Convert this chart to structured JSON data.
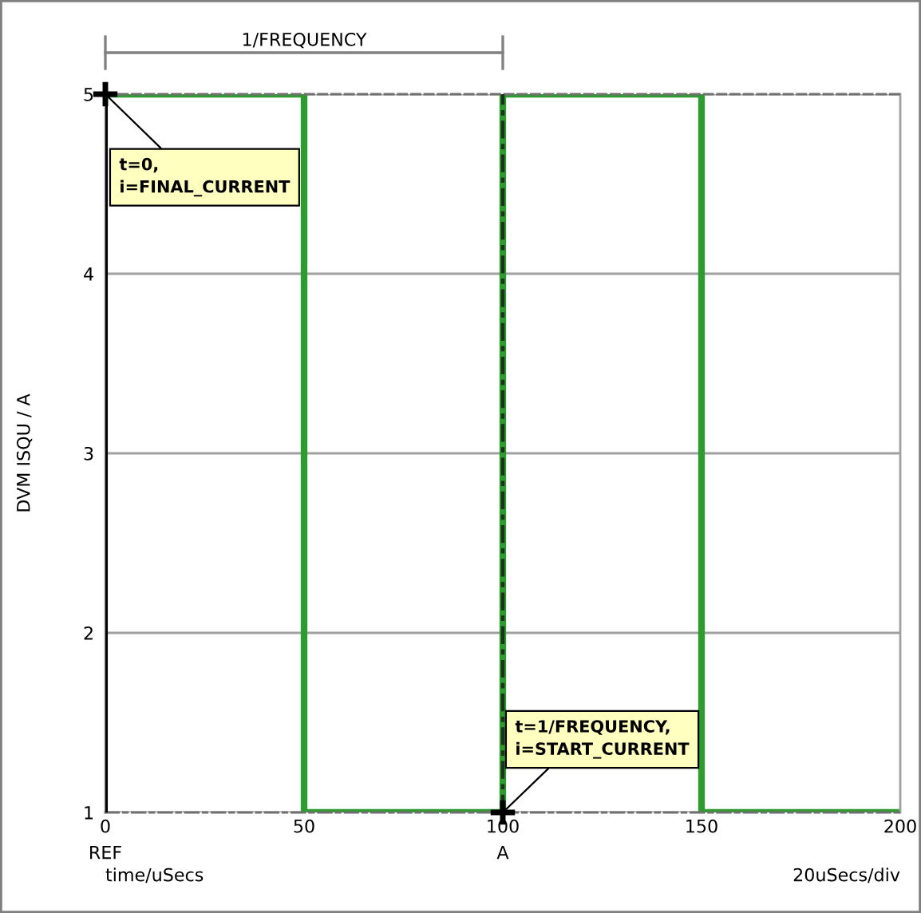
{
  "chart_data": {
    "type": "step",
    "xlabel": "time/uSecs",
    "ylabel": "DVM ISQU / A",
    "series": [
      {
        "color": "#2e9b2e",
        "x": [
          0,
          50,
          100,
          150,
          200
        ],
        "values": [
          5,
          1,
          5,
          1,
          1
        ]
      },
      {
        "type": "scatter",
        "color": "#000000",
        "marker": "cross",
        "x": [
          0,
          100
        ],
        "values": [
          5,
          1
        ]
      }
    ],
    "xlim": [
      0,
      200
    ],
    "ylim": [
      1,
      5
    ],
    "xticks": [
      0,
      50,
      100,
      150,
      200
    ],
    "yticks": [
      1,
      2,
      3,
      4,
      5
    ],
    "grid": "y",
    "ref_lines": [
      {
        "axis": "x",
        "value": 0,
        "label": "REF",
        "color": "#000000",
        "line_style": "solid"
      },
      {
        "axis": "x",
        "value": 100,
        "label": "A",
        "color": "#1a331a",
        "line_style": "dashed"
      }
    ],
    "annotations": [
      "1/FREQUENCY",
      {
        "text": "t=0,\ni=FINAL_CURRENT",
        "x": 0,
        "y": 5
      },
      {
        "text": "t=1/FREQUENCY,\ni=START_CURRENT",
        "x": 100,
        "y": 1
      },
      "20uSecs/div"
    ]
  }
}
